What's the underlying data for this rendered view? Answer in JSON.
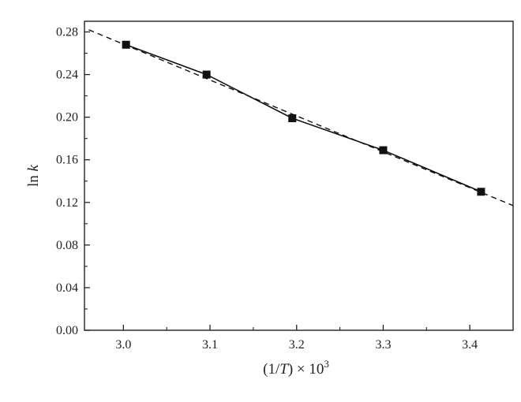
{
  "chart_data": {
    "type": "scatter",
    "title": "",
    "xlabel_parts": {
      "open": "(1/",
      "var": "T",
      "close": ") × 10",
      "exp": "3"
    },
    "ylabel_parts": {
      "fn": "ln ",
      "var": "k"
    },
    "xlim": [
      2.955,
      3.45
    ],
    "ylim": [
      0.0,
      0.29
    ],
    "x_ticks": [
      3.0,
      3.1,
      3.2,
      3.3,
      3.4
    ],
    "x_tick_labels": [
      "3.0",
      "3.1",
      "3.2",
      "3.3",
      "3.4"
    ],
    "y_ticks": [
      0.0,
      0.04,
      0.08,
      0.12,
      0.16,
      0.2,
      0.24,
      0.28
    ],
    "y_tick_labels": [
      "0.00",
      "0.04",
      "0.08",
      "0.12",
      "0.16",
      "0.20",
      "0.24",
      "0.28"
    ],
    "grid": false,
    "legend": "none",
    "series": [
      {
        "style": "solid line with square markers",
        "x": [
          3.003,
          3.096,
          3.195,
          3.3,
          3.413
        ],
        "y": [
          0.268,
          0.24,
          0.199,
          0.169,
          0.13
        ]
      }
    ],
    "fit_line": {
      "style": "dashed",
      "x": [
        2.96,
        3.45
      ],
      "y": [
        0.282,
        0.117
      ]
    },
    "colors": {
      "series": "#111111",
      "axis": "#222222"
    }
  }
}
